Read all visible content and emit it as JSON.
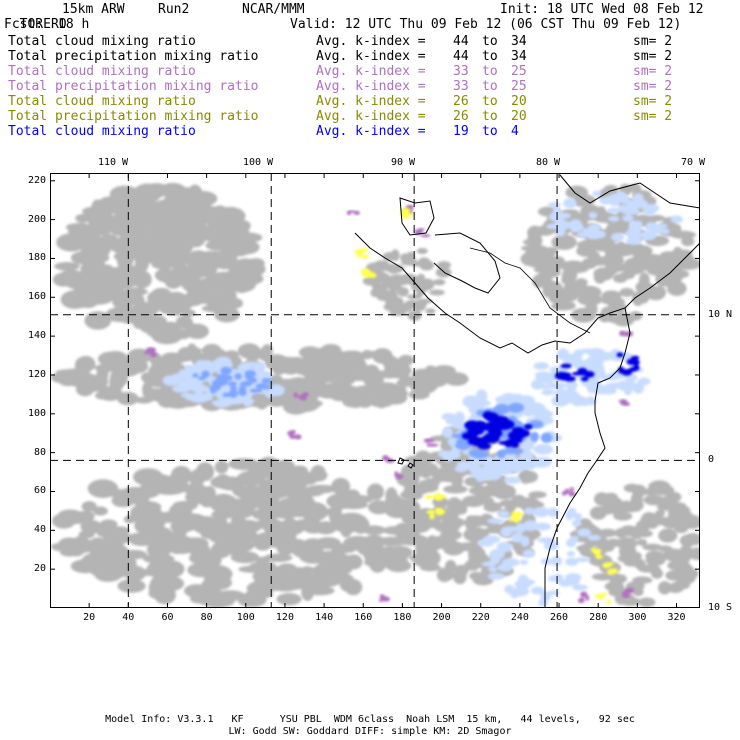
{
  "header": {
    "model": "TORERO",
    "grid": "15km ARW",
    "run": "Run2",
    "org": "NCAR/MMM",
    "init": "Init: 18 UTC Wed 08 Feb 12",
    "fcst_label": "Fcst:",
    "fcst_value": "18 h",
    "valid": "Valid: 12 UTC Thu 09 Feb 12 (06 CST Thu 09 Feb 12)"
  },
  "legend": [
    {
      "field": "Total cloud mixing ratio",
      "kidx_label": "Avg. k-index =",
      "k1": "44",
      "to": "to",
      "k2": "34",
      "sm": "sm= 2",
      "color": "#000000"
    },
    {
      "field": "Total precipitation mixing ratio",
      "kidx_label": "Avg. k-index =",
      "k1": "44",
      "to": "to",
      "k2": "34",
      "sm": "sm= 2",
      "color": "#000000"
    },
    {
      "field": "Total cloud mixing ratio",
      "kidx_label": "Avg. k-index =",
      "k1": "33",
      "to": "to",
      "k2": "25",
      "sm": "sm= 2",
      "color": "#b070c0"
    },
    {
      "field": "Total precipitation mixing ratio",
      "kidx_label": "Avg. k-index =",
      "k1": "33",
      "to": "to",
      "k2": "25",
      "sm": "sm= 2",
      "color": "#b070c0"
    },
    {
      "field": "Total cloud mixing ratio",
      "kidx_label": "Avg. k-index =",
      "k1": "26",
      "to": "to",
      "k2": "20",
      "sm": "sm= 2",
      "color": "#8a8a00"
    },
    {
      "field": "Total precipitation mixing ratio",
      "kidx_label": "Avg. k-index =",
      "k1": "26",
      "to": "to",
      "k2": "20",
      "sm": "sm= 2",
      "color": "#8a8a00"
    },
    {
      "field": "Total cloud mixing ratio",
      "kidx_label": "Avg. k-index =",
      "k1": "19",
      "to": "to",
      "k2": "4",
      "sm": "",
      "color": "#0000ff"
    }
  ],
  "map": {
    "lon_labels": [
      "110 W",
      "100 W",
      "90 W",
      "80 W",
      "70 W"
    ],
    "lat_labels": [
      "10 N",
      "0",
      "10 S"
    ],
    "x_ticks": [
      "20",
      "40",
      "60",
      "80",
      "100",
      "120",
      "140",
      "160",
      "180",
      "200",
      "220",
      "240",
      "260",
      "280",
      "300",
      "320"
    ],
    "y_ticks": [
      "220",
      "200",
      "180",
      "160",
      "140",
      "120",
      "100",
      "80",
      "60",
      "40",
      "20"
    ],
    "x_range": [
      0,
      332
    ],
    "y_range": [
      0,
      224
    ],
    "meridians_x": [
      40,
      113,
      186,
      259
    ],
    "parallels_y": [
      151,
      76
    ],
    "colors": {
      "gray": "#b4b4b4",
      "light_blue": "#c8dcff",
      "mid_blue": "#7fa6ff",
      "deep_blue": "#0000e0",
      "purple": "#b070c0",
      "yellow": "#ffff50",
      "coast": "#000000"
    }
  },
  "footer": {
    "line1": "Model Info: V3.3.1   KF      YSU PBL  WDM 6class  Noah LSM  15 km,   44 levels,   92 sec",
    "line2": "LW: Godd SW: Goddard DIFF: simple KM: 2D Smagor"
  }
}
